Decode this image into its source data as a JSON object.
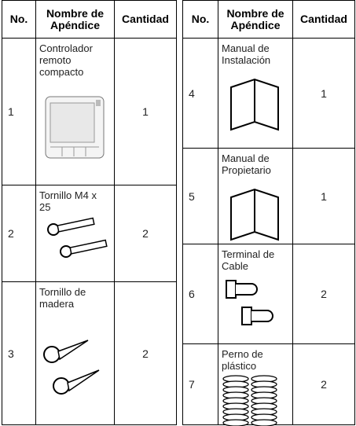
{
  "tables": [
    {
      "header": [
        "No.",
        "Nombre de Apéndice",
        "Cantidad"
      ],
      "rows": [
        {
          "no": 1,
          "name": "Controlador remoto compacto",
          "qty": 1
        },
        {
          "no": 2,
          "name": "Tornillo M4 x 25",
          "qty": 2
        },
        {
          "no": 3,
          "name": "Tornillo de madera",
          "qty": 2
        }
      ]
    },
    {
      "header": [
        "No.",
        "Nombre de Apéndice",
        "Cantidad"
      ],
      "rows": [
        {
          "no": 4,
          "name": "Manual de Instalación",
          "qty": 1
        },
        {
          "no": 5,
          "name": "Manual de Propietario",
          "qty": 1
        },
        {
          "no": 6,
          "name": "Terminal de Cable",
          "qty": 2
        },
        {
          "no": 7,
          "name": "Perno de plástico",
          "qty": 2
        }
      ]
    }
  ]
}
